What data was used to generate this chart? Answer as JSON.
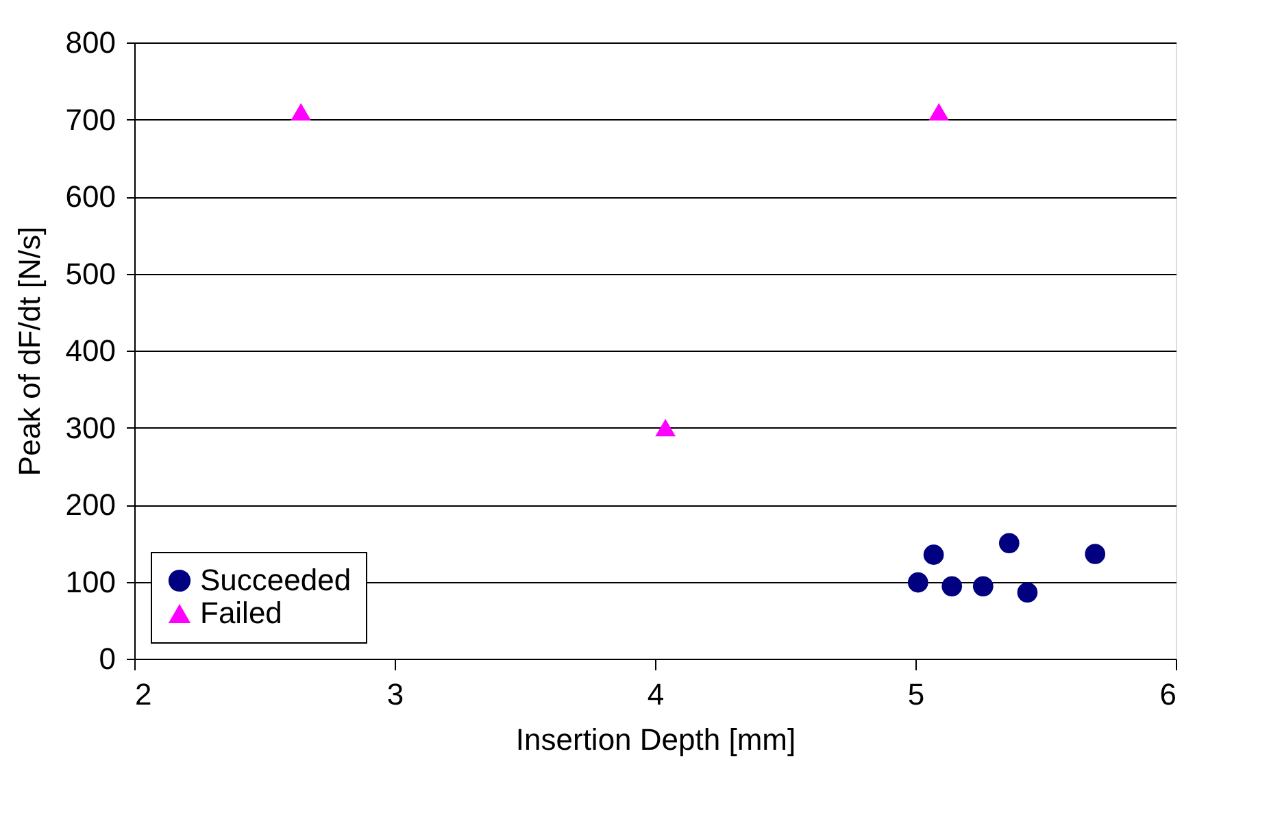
{
  "chart_data": {
    "type": "scatter",
    "xlabel": "Insertion Depth [mm]",
    "ylabel": "Peak of dF/dt [N/s]",
    "xlim": [
      2,
      6
    ],
    "xticks": [
      2,
      3,
      4,
      5,
      6
    ],
    "ylim": [
      0,
      800
    ],
    "yticks": [
      0,
      100,
      200,
      300,
      400,
      500,
      600,
      700,
      800
    ],
    "grid": "y",
    "legend": "bottom left",
    "series": [
      {
        "name": "Succeeded",
        "color": "#000080",
        "marker": "circle",
        "x": [
          5.07,
          5.36,
          5.69,
          5.01,
          5.14,
          5.26,
          5.43
        ],
        "values": [
          135,
          150,
          136,
          99,
          94,
          94,
          86
        ]
      },
      {
        "name": "Failed",
        "color": "#ff00ff",
        "marker": "triangle",
        "x": [
          2.64,
          5.09,
          4.04
        ],
        "values": [
          710,
          710,
          300
        ]
      }
    ]
  }
}
